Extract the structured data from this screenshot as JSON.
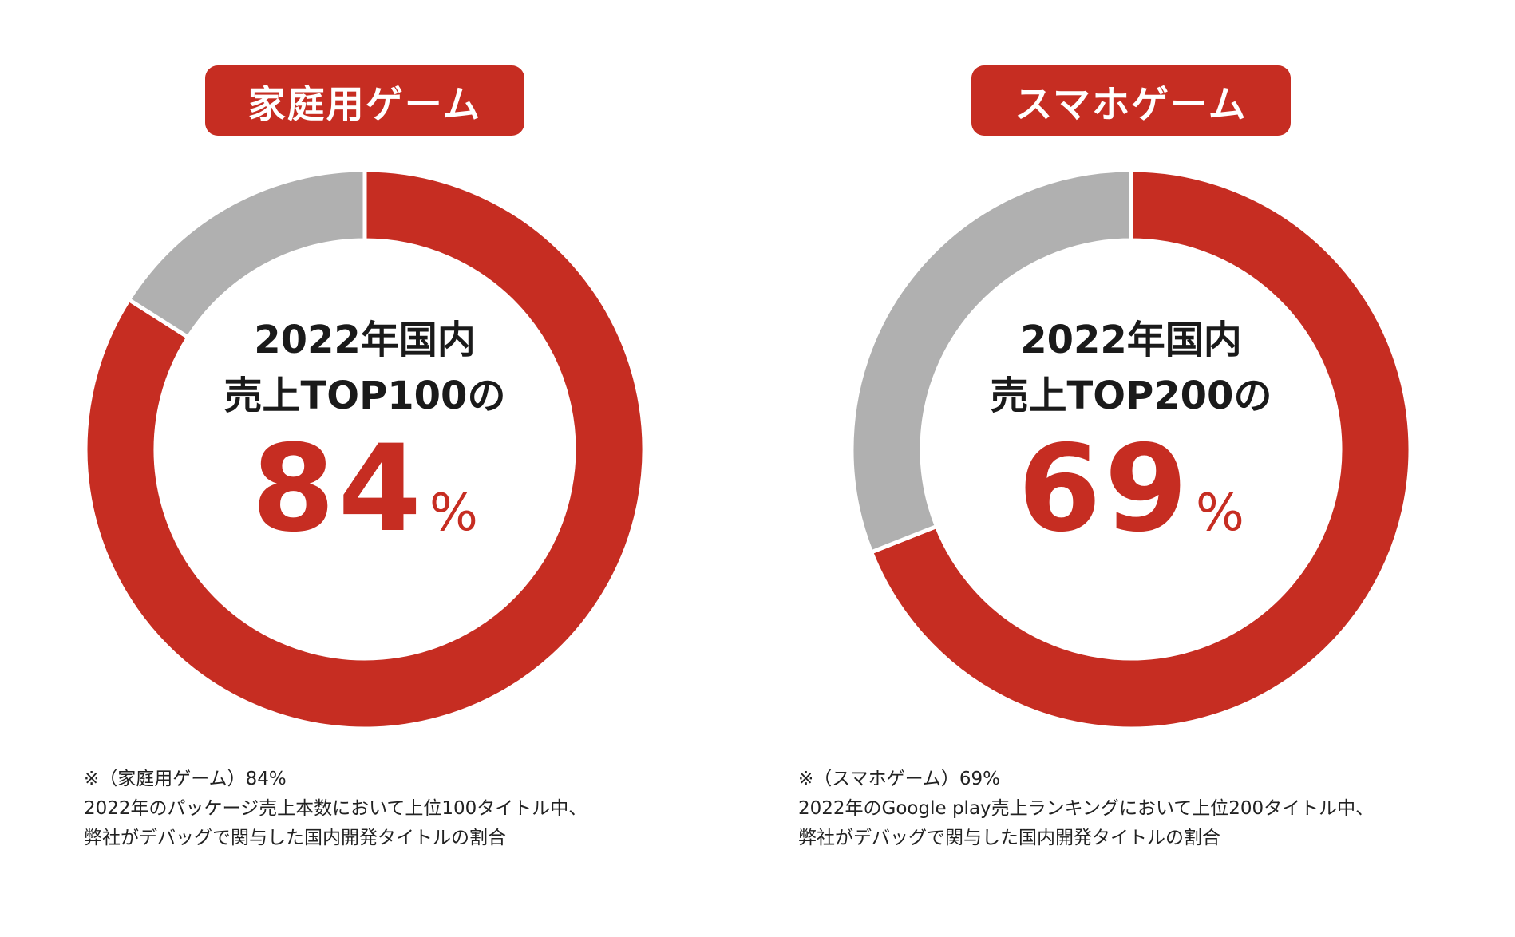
{
  "colors": {
    "accent": "#c62d22",
    "remainder": "#b0b0b0",
    "separator": "#ffffff",
    "text": "#1a1a1a"
  },
  "panels": [
    {
      "title": "家庭用ゲーム",
      "center_line1": "2022年国内",
      "center_line2": "売上TOP100の",
      "percent_value": "84",
      "percent_unit": "%",
      "notes": [
        "※（家庭用ゲーム）84%",
        "2022年のパッケージ売上本数において上位100タイトル中、",
        "弊社がデバッグで関与した国内開発タイトルの割合"
      ]
    },
    {
      "title": "スマホゲーム",
      "center_line1": "2022年国内",
      "center_line2": "売上TOP200の",
      "percent_value": "69",
      "percent_unit": "%",
      "notes": [
        "※（スマホゲーム）69%",
        "2022年のGoogle play売上ランキングにおいて上位200タイトル中、",
        "弊社がデバッグで関与した国内開発タイトルの割合"
      ]
    }
  ],
  "chart_data": [
    {
      "type": "pie",
      "title": "家庭用ゲーム",
      "values": [
        84,
        16
      ],
      "unit": "%"
    },
    {
      "type": "pie",
      "title": "スマホゲーム",
      "values": [
        69,
        31
      ],
      "unit": "%"
    }
  ]
}
